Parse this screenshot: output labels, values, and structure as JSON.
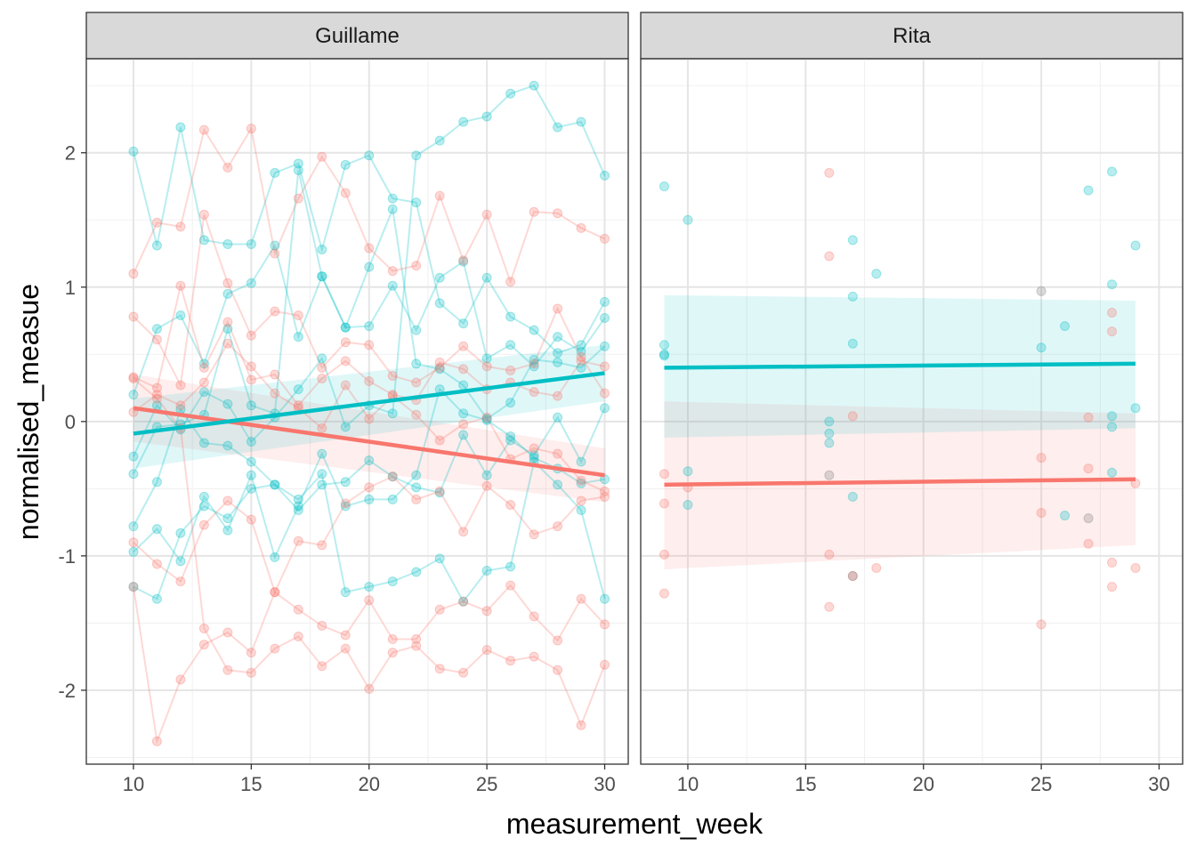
{
  "chart_data": {
    "type": "line",
    "xlabel": "measurement_week",
    "ylabel": "normalised_measue",
    "xlim": [
      8,
      31
    ],
    "ylim": [
      -2.55,
      2.7
    ],
    "x_ticks": [
      10,
      15,
      20,
      25,
      30
    ],
    "y_ticks": [
      -2,
      -1,
      0,
      1,
      2
    ],
    "grid": true,
    "legend": "none",
    "colors": {
      "group1": "#F8766D",
      "group2": "#00BFC4",
      "overlap": "#7F7F7F"
    },
    "panels": [
      {
        "title": "Guillame",
        "series": [
          {
            "name": "Guillame group2 subject 1",
            "group": "group2",
            "x": [
              10,
              11,
              12,
              13,
              14,
              15,
              16,
              17,
              18,
              19,
              20,
              21,
              22,
              23,
              24,
              25,
              26,
              27,
              28,
              29,
              30
            ],
            "y": [
              2.01,
              1.31,
              2.19,
              1.35,
              1.32,
              1.32,
              1.85,
              1.92,
              1.28,
              1.91,
              1.98,
              1.66,
              1.63,
              0.88,
              0.73,
              1.07,
              0.78,
              0.68,
              0.51,
              0.57,
              0.89
            ]
          },
          {
            "name": "Guillame group2 subject 2",
            "group": "group2",
            "x": [
              10,
              11,
              12,
              13,
              14,
              15,
              16,
              17,
              18,
              19,
              20,
              21,
              22,
              23,
              24,
              25,
              26,
              27,
              28,
              29,
              30
            ],
            "y": [
              0.2,
              0.69,
              0.79,
              0.43,
              0.95,
              1.03,
              1.31,
              0.63,
              1.08,
              0.7,
              0.71,
              1.01,
              0.68,
              1.07,
              1.19,
              0.47,
              0.57,
              0.41,
              0.63,
              0.52,
              0.77
            ]
          },
          {
            "name": "Guillame group2 subject 3",
            "group": "group2",
            "x": [
              10,
              11,
              12,
              13,
              14,
              15,
              16,
              17,
              18,
              19,
              20,
              21,
              22,
              23,
              24,
              25,
              26,
              27,
              28,
              29,
              30
            ],
            "y": [
              -0.26,
              0.12,
              -0.06,
              0.22,
              0.13,
              -0.15,
              0.03,
              0.24,
              0.47,
              -0.04,
              0.12,
              0.06,
              1.98,
              2.09,
              2.23,
              2.27,
              2.44,
              2.5,
              2.19,
              2.23,
              1.83
            ]
          },
          {
            "name": "Guillame group2 subject 4",
            "group": "group2",
            "x": [
              10,
              11,
              12,
              13,
              14,
              15,
              16,
              17,
              18,
              19,
              20,
              21,
              22,
              23,
              24,
              25,
              26,
              27,
              28,
              29,
              30
            ],
            "y": [
              -0.97,
              -0.8,
              -1.04,
              -0.56,
              -0.81,
              -0.4,
              -1.01,
              -0.63,
              -0.24,
              -0.63,
              -0.58,
              -0.58,
              -0.4,
              0.24,
              0.06,
              0.01,
              -0.11,
              -0.27,
              -0.35,
              -0.46,
              -0.43
            ]
          },
          {
            "name": "Guillame group2 subject 5",
            "group": "group2",
            "x": [
              10,
              11,
              12,
              13,
              14,
              15,
              16,
              17,
              18,
              19,
              20,
              21,
              22,
              23,
              24,
              25,
              26,
              27,
              28,
              29,
              30
            ],
            "y": [
              -1.23,
              -1.32,
              -0.83,
              -0.63,
              -0.72,
              -0.5,
              -0.47,
              -0.58,
              -0.39,
              -1.27,
              -1.23,
              -1.19,
              -1.12,
              -1.02,
              -1.34,
              -1.11,
              -1.08,
              -0.3,
              -0.47,
              -0.66,
              -1.32
            ]
          },
          {
            "name": "Guillame group2 subject 6",
            "group": "group2",
            "x": [
              10,
              11,
              12,
              13,
              14,
              15,
              16,
              17,
              18,
              19,
              20,
              21,
              22,
              23,
              24,
              25,
              26,
              27,
              28,
              29,
              30
            ],
            "y": [
              -0.78,
              -0.45,
              0.09,
              -0.16,
              -0.18,
              -0.3,
              -0.47,
              -0.66,
              -0.47,
              -0.45,
              -0.29,
              -0.41,
              -0.49,
              -0.53,
              -0.1,
              -0.4,
              -0.14,
              -0.25,
              0.03,
              -0.3,
              0.1
            ]
          },
          {
            "name": "Guillame group2 subject 7",
            "group": "group2",
            "x": [
              10,
              11,
              12,
              13,
              14,
              15,
              16,
              17,
              18,
              19,
              20,
              21,
              22,
              23,
              24,
              25,
              26,
              27,
              28,
              29,
              30
            ],
            "y": [
              -0.39,
              -0.04,
              -0.02,
              0.05,
              0.69,
              0.12,
              0.06,
              1.87,
              1.08,
              0.7,
              1.15,
              1.58,
              0.43,
              0.39,
              0.27,
              0.02,
              0.14,
              0.46,
              0.44,
              0.4,
              0.56
            ]
          },
          {
            "name": "Guillame group1 subject 1",
            "group": "group1",
            "x": [
              10,
              11,
              12,
              13,
              14,
              15,
              16,
              17,
              18,
              19,
              20,
              21,
              22,
              23,
              24,
              25,
              26,
              27,
              28,
              29,
              30
            ],
            "y": [
              1.1,
              1.48,
              1.45,
              2.17,
              1.89,
              2.18,
              1.25,
              1.66,
              1.97,
              1.7,
              1.29,
              1.12,
              1.16,
              1.68,
              1.2,
              1.54,
              1.04,
              1.56,
              1.55,
              1.44,
              1.36
            ]
          },
          {
            "name": "Guillame group1 subject 2",
            "group": "group1",
            "x": [
              10,
              11,
              12,
              13,
              14,
              15,
              16,
              17,
              18,
              19,
              20,
              21,
              22,
              23,
              24,
              25,
              26,
              27,
              28,
              29,
              30
            ],
            "y": [
              0.78,
              0.61,
              0.27,
              1.54,
              1.03,
              0.64,
              0.82,
              0.79,
              0.4,
              0.59,
              0.57,
              0.34,
              0.29,
              0.4,
              0.56,
              0.41,
              0.38,
              0.43,
              0.84,
              0.48,
              0.21
            ]
          },
          {
            "name": "Guillame group1 subject 3",
            "group": "group1",
            "x": [
              10,
              11,
              12,
              13,
              14,
              15,
              16,
              17,
              18,
              19,
              20,
              21,
              22,
              23,
              24,
              25,
              26,
              27,
              28,
              29,
              30
            ],
            "y": [
              0.33,
              0.25,
              1.01,
              0.4,
              0.74,
              0.31,
              0.35,
              0.12,
              0.32,
              0.45,
              0.3,
              0.2,
              0.16,
              0.44,
              0.39,
              0.24,
              0.29,
              0.22,
              0.19,
              0.45,
              0.41
            ]
          },
          {
            "name": "Guillame group1 subject 4",
            "group": "group1",
            "x": [
              10,
              11,
              12,
              13,
              14,
              15,
              16,
              17,
              18,
              19,
              20,
              21,
              22,
              23,
              24,
              25,
              26,
              27,
              28,
              29,
              30
            ],
            "y": [
              0.07,
              0.2,
              0.12,
              0.29,
              0.58,
              0.41,
              0.21,
              0.1,
              -0.05,
              0.27,
              0.02,
              0.19,
              0.05,
              -0.14,
              -0.02,
              0.03,
              -0.28,
              -0.2,
              -0.24,
              -0.44,
              -0.52
            ]
          },
          {
            "name": "Guillame group1 subject 5",
            "group": "group1",
            "x": [
              10,
              11,
              12,
              13,
              14,
              15,
              16,
              17,
              18,
              19,
              20,
              21,
              22,
              23,
              24,
              25,
              26,
              27,
              28,
              29,
              30
            ],
            "y": [
              -0.9,
              -1.06,
              -1.19,
              -0.77,
              -0.59,
              -0.73,
              -1.27,
              -0.89,
              -0.92,
              -0.61,
              -0.49,
              -0.41,
              -0.58,
              -0.52,
              -0.82,
              -0.48,
              -0.62,
              -0.84,
              -0.78,
              -0.59,
              -0.56
            ]
          },
          {
            "name": "Guillame group1 subject 6",
            "group": "group1",
            "x": [
              10,
              11,
              12,
              13,
              14,
              15,
              16,
              17,
              18,
              19,
              20,
              21,
              22,
              23,
              24,
              25,
              26,
              27,
              28,
              29,
              30
            ],
            "y": [
              -1.23,
              -2.38,
              -1.92,
              -1.66,
              -1.57,
              -1.72,
              -1.27,
              -1.4,
              -1.52,
              -1.59,
              -1.33,
              -1.62,
              -1.62,
              -1.4,
              -1.34,
              -1.41,
              -1.22,
              -1.45,
              -1.63,
              -1.32,
              -1.51
            ]
          },
          {
            "name": "Guillame group1 subject 7",
            "group": "group1",
            "x": [
              10,
              11,
              12,
              13,
              14,
              15,
              16,
              17,
              18,
              19,
              20,
              21,
              22,
              23,
              24,
              25,
              26,
              27,
              28,
              29,
              30
            ],
            "y": [
              0.32,
              0.17,
              -0.05,
              -1.54,
              -1.85,
              -1.87,
              -1.69,
              -1.6,
              -1.82,
              -1.69,
              -1.99,
              -1.72,
              -1.67,
              -1.84,
              -1.87,
              -1.7,
              -1.78,
              -1.75,
              -1.85,
              -2.26,
              -1.81
            ]
          }
        ],
        "trends": [
          {
            "name": "Guillame group1 trend",
            "group": "group1",
            "x": [
              10,
              30
            ],
            "y": [
              0.1,
              -0.4
            ],
            "ci_lower": [
              -0.15,
              -0.6
            ],
            "ci_upper": [
              0.35,
              -0.2
            ]
          },
          {
            "name": "Guillame group2 trend",
            "group": "group2",
            "x": [
              10,
              30
            ],
            "y": [
              -0.09,
              0.36
            ],
            "ci_lower": [
              -0.35,
              0.15
            ],
            "ci_upper": [
              0.17,
              0.57
            ]
          }
        ]
      },
      {
        "title": "Rita",
        "series": [
          {
            "name": "Rita group2 points",
            "group": "group2",
            "lines": false,
            "x": [
              9,
              9,
              9,
              10,
              10,
              10,
              16,
              16,
              16,
              17,
              17,
              17,
              18,
              25,
              26,
              26,
              27,
              28,
              28,
              28,
              29,
              29,
              9,
              17,
              28,
              28
            ],
            "y": [
              1.75,
              0.57,
              0.49,
              1.5,
              -0.37,
              -0.62,
              0.0,
              -0.09,
              -0.16,
              1.35,
              0.93,
              0.58,
              1.1,
              0.55,
              0.71,
              -0.7,
              1.72,
              1.02,
              0.04,
              -0.04,
              1.31,
              0.1,
              0.5,
              -0.56,
              1.86,
              -0.38
            ]
          },
          {
            "name": "Rita group1 points",
            "group": "group1",
            "lines": false,
            "x": [
              9,
              9,
              9,
              9,
              10,
              16,
              16,
              16,
              16,
              17,
              17,
              18,
              25,
              25,
              25,
              27,
              27,
              27,
              28,
              28,
              28,
              28,
              29,
              29
            ],
            "y": [
              -0.39,
              -0.61,
              -0.99,
              -1.28,
              -0.49,
              1.85,
              1.23,
              -0.99,
              -1.38,
              0.04,
              -1.15,
              -1.09,
              -0.27,
              -0.68,
              -1.51,
              0.03,
              -0.35,
              -0.91,
              0.81,
              0.67,
              -1.05,
              -1.23,
              -1.09,
              -0.46
            ]
          },
          {
            "name": "Rita overlap points",
            "group": "overlap",
            "lines": false,
            "x": [
              25,
              16,
              27,
              17
            ],
            "y": [
              0.97,
              -0.4,
              -0.72,
              -1.15
            ]
          }
        ],
        "trends": [
          {
            "name": "Rita group1 trend",
            "group": "group1",
            "x": [
              9,
              29
            ],
            "y": [
              -0.47,
              -0.43
            ],
            "ci_lower": [
              -1.1,
              -0.92
            ],
            "ci_upper": [
              0.15,
              0.06
            ]
          },
          {
            "name": "Rita group2 trend",
            "group": "group2",
            "x": [
              9,
              29
            ],
            "y": [
              0.4,
              0.43
            ],
            "ci_lower": [
              -0.12,
              -0.05
            ],
            "ci_upper": [
              0.94,
              0.9
            ]
          }
        ]
      }
    ]
  }
}
